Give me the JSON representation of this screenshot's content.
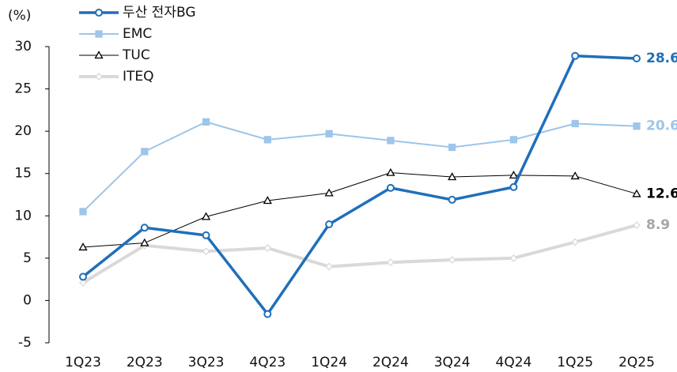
{
  "chart_data": {
    "type": "line",
    "ylabel": "(%)",
    "categories": [
      "1Q23",
      "2Q23",
      "3Q23",
      "4Q23",
      "1Q24",
      "2Q24",
      "3Q24",
      "4Q24",
      "1Q25",
      "2Q25"
    ],
    "series": [
      {
        "name": "두산 전자BG",
        "color": "#1f6fba",
        "marker": "circle",
        "width": 3.5,
        "values": [
          2.8,
          8.6,
          7.7,
          -1.6,
          9.0,
          13.3,
          11.9,
          13.4,
          28.9,
          28.6
        ]
      },
      {
        "name": "EMC",
        "color": "#9ec5ea",
        "marker": "square",
        "width": 2,
        "values": [
          10.5,
          17.6,
          21.1,
          19.0,
          19.7,
          18.9,
          18.1,
          19.0,
          20.9,
          20.6
        ]
      },
      {
        "name": "TUC",
        "color": "#000000",
        "marker": "triangle",
        "width": 1,
        "values": [
          6.3,
          6.8,
          9.9,
          11.8,
          12.7,
          15.1,
          14.6,
          14.8,
          14.7,
          12.6
        ]
      },
      {
        "name": "ITEQ",
        "color": "#d9d9d9",
        "marker": "diamond",
        "width": 4,
        "values": [
          2.1,
          6.5,
          5.8,
          6.2,
          4.0,
          4.5,
          4.8,
          5.0,
          6.9,
          8.9
        ]
      }
    ],
    "ylim": [
      -5,
      30
    ],
    "yticks": [
      -5,
      0,
      5,
      10,
      15,
      20,
      25,
      30
    ]
  }
}
